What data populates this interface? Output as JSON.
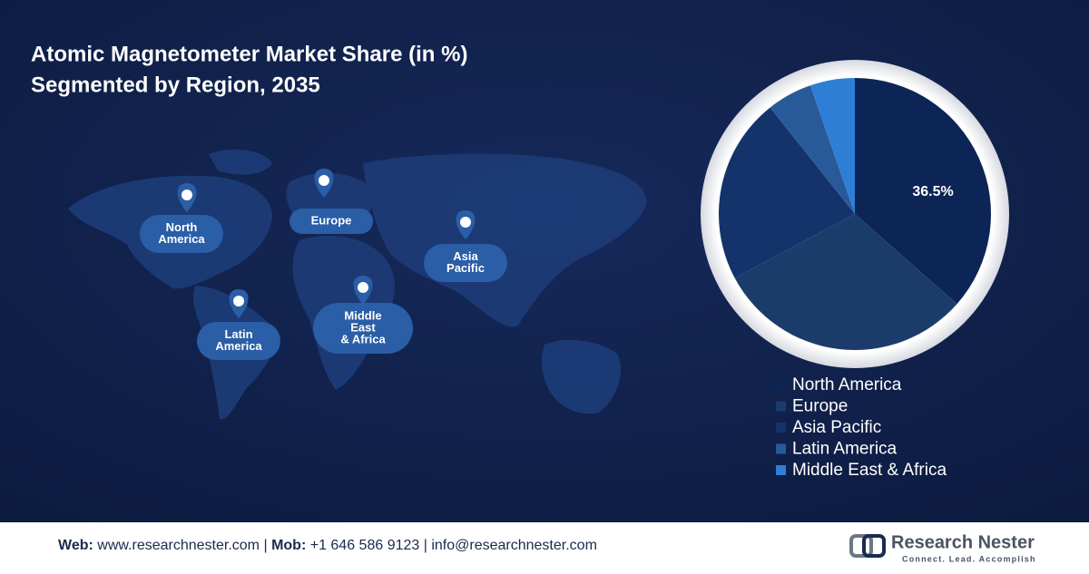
{
  "chart_data": {
    "type": "pie",
    "title": [
      "Atomic Magnetometer Market Share (in %)",
      "Segmented by Region, 2035"
    ],
    "categories": [
      "North America",
      "Europe",
      "Asia Pacific",
      "Latin America",
      "Middle East & Africa"
    ],
    "values": [
      36.5,
      30.7,
      22.1,
      5.4,
      5.3
    ],
    "value_labels": [
      "36.5%",
      null,
      null,
      null,
      null
    ],
    "colors": [
      "#0c2556",
      "#1b3c6b",
      "#14336b",
      "#285a99",
      "#2e7ed6"
    ]
  },
  "map_labels": [
    [
      "North",
      "America"
    ],
    [
      "Europe"
    ],
    [
      "Asia",
      "Pacific"
    ],
    [
      "Latin",
      "America"
    ],
    [
      "Middle",
      "East",
      "& Africa"
    ]
  ],
  "footer": {
    "web_label": "Web:",
    "web": "www.researchnester.com",
    "sep1": "|",
    "mob_label": "Mob:",
    "mob": "+1 646 586 9123",
    "sep2": "|",
    "email": "info@researchnester.com",
    "logo": "Research Nester",
    "tagline": "Connect. Lead. Accomplish"
  }
}
